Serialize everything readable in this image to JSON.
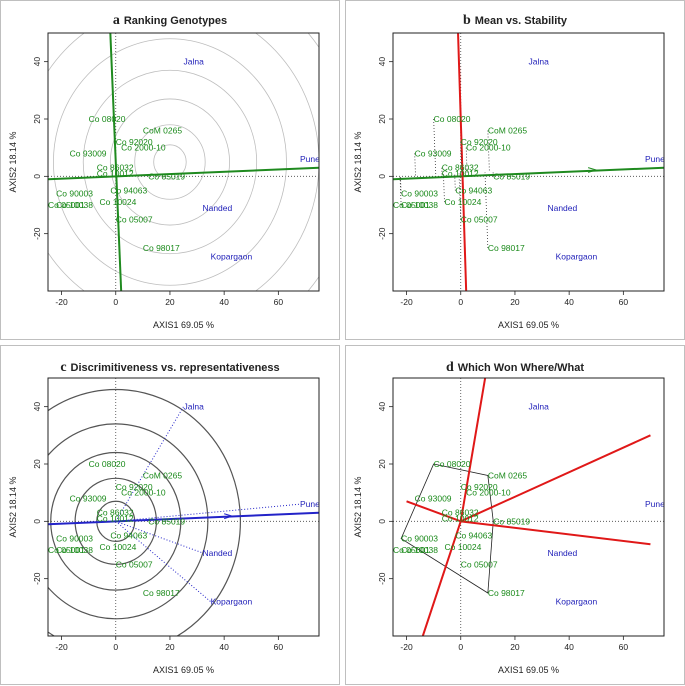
{
  "chart_data": [
    {
      "type": "scatter",
      "panel_letter": "a",
      "title": "Ranking Genotypes",
      "variant": "ranking",
      "xlabel": "AXIS1 69.05 %",
      "ylabel": "AXIS2 18.14 %",
      "xlim": [
        -25,
        75
      ],
      "ylim": [
        -40,
        50
      ],
      "xticks": [
        -20,
        0,
        20,
        40,
        60
      ],
      "yticks": [
        -20,
        0,
        20,
        40
      ],
      "ideal": [
        20,
        5
      ],
      "circle_radii": [
        6,
        13,
        22,
        32,
        43,
        55,
        68,
        82
      ]
    },
    {
      "type": "scatter",
      "panel_letter": "b",
      "title": "Mean vs. Stability",
      "variant": "stability",
      "xlabel": "AXIS1 69.05 %",
      "ylabel": "AXIS2 18.14 %",
      "xlim": [
        -25,
        75
      ],
      "ylim": [
        -40,
        50
      ],
      "xticks": [
        -20,
        0,
        20,
        40,
        60
      ],
      "yticks": [
        -20,
        0,
        20,
        40
      ]
    },
    {
      "type": "scatter",
      "panel_letter": "c",
      "title": "Discrimitiveness vs. representativeness",
      "variant": "discrim",
      "xlabel": "AXIS1 69.05 %",
      "ylabel": "AXIS2 18.14 %",
      "xlim": [
        -25,
        75
      ],
      "ylim": [
        -40,
        50
      ],
      "xticks": [
        -20,
        0,
        20,
        40,
        60
      ],
      "yticks": [
        -20,
        0,
        20,
        40
      ],
      "circle_radii": [
        7,
        15,
        24,
        34,
        46
      ]
    },
    {
      "type": "scatter",
      "panel_letter": "d",
      "title": "Which Won Where/What",
      "variant": "whichwon",
      "xlabel": "AXIS1 69.05 %",
      "ylabel": "AXIS2 18.14 %",
      "xlim": [
        -25,
        75
      ],
      "ylim": [
        -40,
        50
      ],
      "xticks": [
        -20,
        0,
        20,
        40,
        60
      ],
      "yticks": [
        -20,
        0,
        20,
        40
      ],
      "hull": [
        "Co 08020",
        "CoM 0265",
        "Co 85019",
        "Co 98017",
        "Co 90003"
      ],
      "sector_lines": [
        [
          -14,
          -40
        ],
        [
          9,
          50
        ],
        [
          70,
          30
        ],
        [
          70,
          -8
        ],
        [
          -20,
          7
        ]
      ]
    }
  ],
  "genotypes": [
    {
      "name": "Co 08020",
      "x": -10,
      "y": 20
    },
    {
      "name": "CoM 0265",
      "x": 10,
      "y": 16
    },
    {
      "name": "Co 92020",
      "x": 0,
      "y": 12
    },
    {
      "name": "Co 2000-10",
      "x": 2,
      "y": 10
    },
    {
      "name": "Co 93009",
      "x": -17,
      "y": 8
    },
    {
      "name": "Co 86032",
      "x": -7,
      "y": 3
    },
    {
      "name": "Co 10012",
      "x": -7,
      "y": 1
    },
    {
      "name": "Co 85019",
      "x": 12,
      "y": 0
    },
    {
      "name": "Co 94063",
      "x": -2,
      "y": -5
    },
    {
      "name": "Co 90003",
      "x": -22,
      "y": -6
    },
    {
      "name": "Co 10024",
      "x": -6,
      "y": -9
    },
    {
      "name": "Co 05001",
      "x": -25,
      "y": -10
    },
    {
      "name": "Co 10038",
      "x": -22,
      "y": -10
    },
    {
      "name": "Co 05007",
      "x": 0,
      "y": -15
    },
    {
      "name": "Co 98017",
      "x": 10,
      "y": -25
    }
  ],
  "environments": [
    {
      "name": "Jalna",
      "x": 25,
      "y": 40
    },
    {
      "name": "Pune",
      "x": 68,
      "y": 6
    },
    {
      "name": "Nanded",
      "x": 32,
      "y": -11
    },
    {
      "name": "Kopargaon",
      "x": 35,
      "y": -28
    }
  ],
  "colors": {
    "genotype": "#1a8a1a",
    "environment": "#1e1eb8",
    "axis_green": "#1f8a1f",
    "red": "#e01818",
    "blue": "#2323c8",
    "grid": "#bdbdbd",
    "circle_dark": "#555555"
  }
}
